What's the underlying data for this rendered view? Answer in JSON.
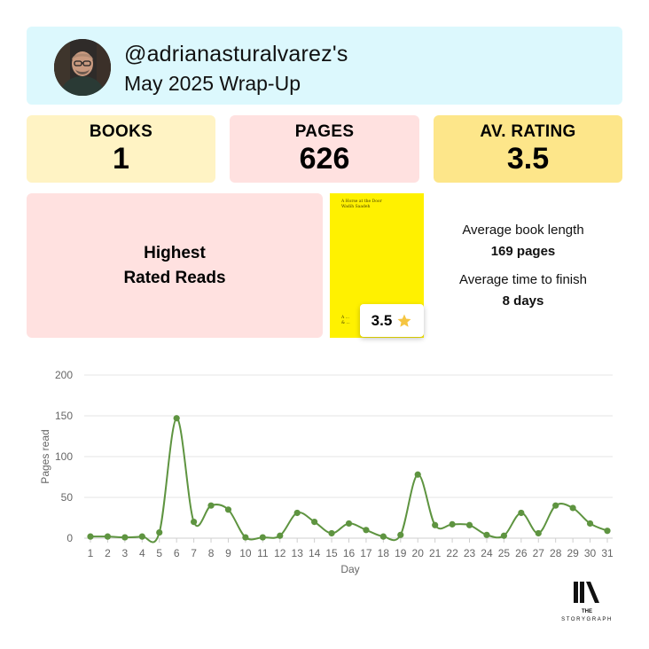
{
  "header": {
    "username": "@adrianasturalvarez's",
    "subtitle": "May 2025 Wrap-Up"
  },
  "stats": {
    "books_label": "BOOKS",
    "books_value": "1",
    "pages_label": "PAGES",
    "pages_value": "626",
    "rating_label": "AV. RATING",
    "rating_value": "3.5"
  },
  "highest": {
    "label": "Highest Rated Reads"
  },
  "book": {
    "title": "A Horse at the Door",
    "author": "Wadih Saadeh",
    "rating": "3.5",
    "cover_color": "#fff100"
  },
  "averages": {
    "length_label": "Average book length",
    "length_value": "169 pages",
    "time_label": "Average time to finish",
    "time_value": "8 days"
  },
  "logo": {
    "line1": "THE",
    "line2": "STORYGRAPH"
  },
  "colors": {
    "line": "#5e9440",
    "star": "#f5c542"
  },
  "chart_data": {
    "type": "line",
    "xlabel": "Day",
    "ylabel": "Pages read",
    "ylim": [
      0,
      200
    ],
    "yticks": [
      0,
      50,
      100,
      150,
      200
    ],
    "grid": true,
    "x": [
      1,
      2,
      3,
      4,
      5,
      6,
      7,
      8,
      9,
      10,
      11,
      12,
      13,
      14,
      15,
      16,
      17,
      18,
      19,
      20,
      21,
      22,
      23,
      24,
      25,
      26,
      27,
      28,
      29,
      30,
      31
    ],
    "series": [
      {
        "values": [
          2,
          2,
          1,
          2,
          7,
          147,
          20,
          40,
          35,
          1,
          1,
          3,
          31,
          20,
          6,
          18,
          10,
          2,
          4,
          78,
          16,
          17,
          16,
          4,
          3,
          31,
          6,
          40,
          37,
          18,
          9
        ]
      }
    ]
  }
}
